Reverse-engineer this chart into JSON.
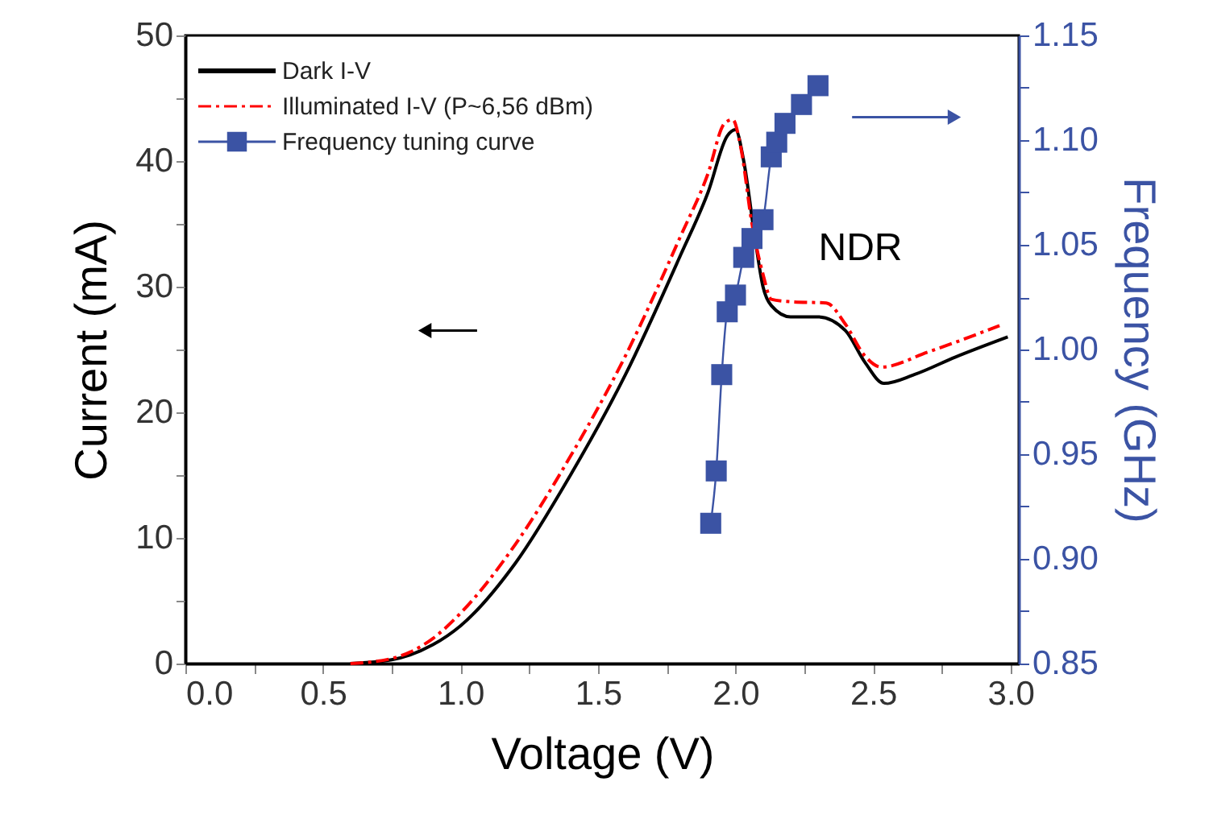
{
  "chart_data": {
    "type": "line",
    "xlabel": "Voltage (V)",
    "ylabel": "Current (mA)",
    "y2label": "Frequency (GHz)",
    "xlim": [
      0,
      3.03
    ],
    "ylim": [
      0,
      50
    ],
    "y2lim": [
      0.85,
      1.15
    ],
    "xticks": [
      {
        "value": 0,
        "label": "0.0"
      },
      {
        "value": 0.25,
        "label": null
      },
      0.5,
      {
        "value": 0.75,
        "label": null
      },
      {
        "value": 1,
        "label": "1.0"
      },
      {
        "value": 1.25,
        "label": null
      },
      1.5,
      {
        "value": 1.75,
        "label": null
      },
      {
        "value": 2,
        "label": "2.0"
      },
      {
        "value": 2.25,
        "label": null
      },
      2.5,
      {
        "value": 2.75,
        "label": null
      },
      {
        "value": 3,
        "label": "3.0"
      }
    ],
    "yticks": [
      0,
      {
        "value": 5,
        "label": null
      },
      10,
      {
        "value": 15,
        "label": null
      },
      20,
      {
        "value": 25,
        "label": null
      },
      30,
      {
        "value": 35,
        "label": null
      },
      40,
      {
        "value": 45,
        "label": null
      },
      50
    ],
    "y2ticks": [
      0.85,
      {
        "value": 0.875,
        "label": null
      },
      {
        "value": 0.9,
        "label": "0.90"
      },
      {
        "value": 0.925,
        "label": null
      },
      0.95,
      {
        "value": 0.975,
        "label": null
      },
      {
        "value": 1.0,
        "label": "1.00"
      },
      {
        "value": 1.025,
        "label": null
      },
      1.05,
      {
        "value": 1.075,
        "label": null
      },
      {
        "value": 1.1,
        "label": "1.10"
      },
      {
        "value": 1.125,
        "label": null
      },
      1.15
    ],
    "legend": "top left",
    "grid": false,
    "annotations": [
      "NDR"
    ],
    "series": [
      {
        "name": "Dark I-V",
        "color": "#000000",
        "line_style": "solid",
        "marker": "none",
        "x": [
          0.6,
          0.75,
          0.9,
          1.0,
          1.2,
          1.4,
          1.6,
          1.8,
          1.9,
          1.97,
          2.0,
          2.03,
          2.07,
          2.1,
          2.13,
          2.2,
          2.3,
          2.4,
          2.47,
          2.54,
          2.65,
          2.8,
          2.99
        ],
        "values": [
          0,
          0.3,
          1.5,
          3,
          8,
          15,
          23,
          32.5,
          37.5,
          42,
          42.5,
          40,
          34,
          30,
          28.5,
          27.6,
          27.6,
          26.5,
          24,
          22.3,
          23,
          24.4,
          26
        ]
      },
      {
        "name": "Illuminated I-V (P~6,56 dBm)",
        "color": "#ff0000",
        "line_style": "dashed",
        "marker": "none",
        "x": [
          0.6,
          0.75,
          0.9,
          1.0,
          1.2,
          1.4,
          1.6,
          1.8,
          1.9,
          1.96,
          1.99,
          2.02,
          2.06,
          2.1,
          2.13,
          2.2,
          2.33,
          2.4,
          2.47,
          2.53,
          2.7,
          2.96
        ],
        "values": [
          0,
          0.4,
          2,
          4,
          9.5,
          16.5,
          24.5,
          34,
          39,
          43,
          43.3,
          41,
          35,
          31,
          29,
          28.8,
          28.7,
          27,
          24.5,
          23.6,
          24.8,
          26.9
        ]
      },
      {
        "name": "Frequency tuning curve",
        "axis": "y2",
        "color": "#3b53a4",
        "line_style": "solid",
        "marker": "square",
        "x": [
          1.91,
          1.93,
          1.95,
          1.97,
          2.0,
          2.03,
          2.06,
          2.1,
          2.13,
          2.15,
          2.18,
          2.24,
          2.3
        ],
        "values": [
          0.917,
          0.942,
          0.988,
          1.018,
          1.026,
          1.044,
          1.053,
          1.062,
          1.092,
          1.099,
          1.108,
          1.117,
          1.126
        ]
      }
    ]
  }
}
